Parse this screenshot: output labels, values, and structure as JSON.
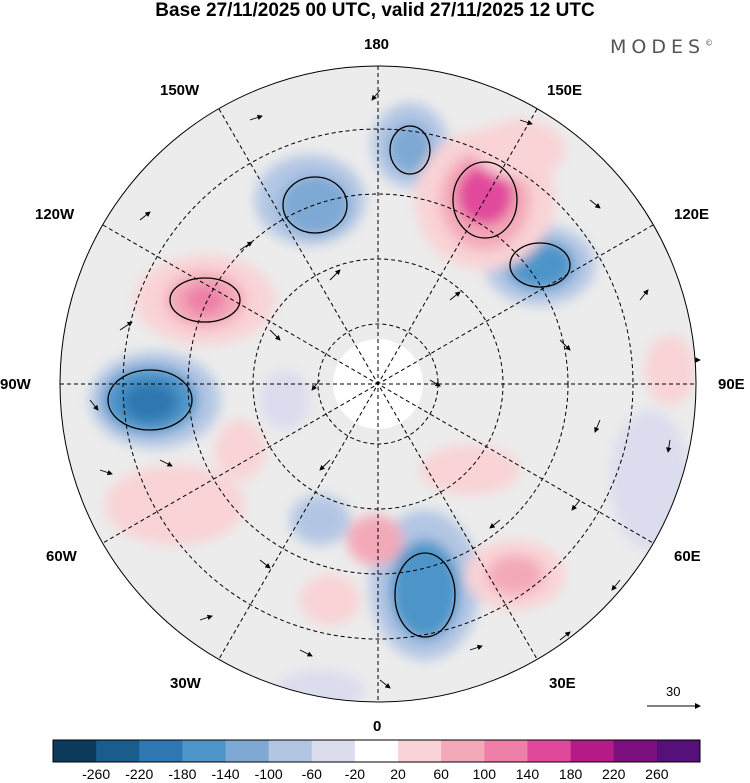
{
  "title": "Base 27/11/2025 00 UTC, valid 27/11/2025 12 UTC",
  "brand": {
    "text": "MODES",
    "mark": "©"
  },
  "longitude_labels": [
    "180",
    "150E",
    "120E",
    "90E",
    "60E",
    "30E",
    "0",
    "30W",
    "60W",
    "90W",
    "120W",
    "150W"
  ],
  "vector_reference": {
    "value": "30"
  },
  "colorbar": {
    "ticks": [
      "-260",
      "-220",
      "-180",
      "-140",
      "-100",
      "-60",
      "-20",
      "20",
      "60",
      "100",
      "140",
      "180",
      "220",
      "260"
    ],
    "colors": [
      "#0b3a5c",
      "#1a5d8c",
      "#2e77b0",
      "#4e95c9",
      "#7ea9d4",
      "#b2c6e4",
      "#dcdcef",
      "#ffffff",
      "#f9d3d6",
      "#f3a9b8",
      "#ee7fa8",
      "#e1489b",
      "#b51a88",
      "#7b0f7d",
      "#561079"
    ]
  }
}
